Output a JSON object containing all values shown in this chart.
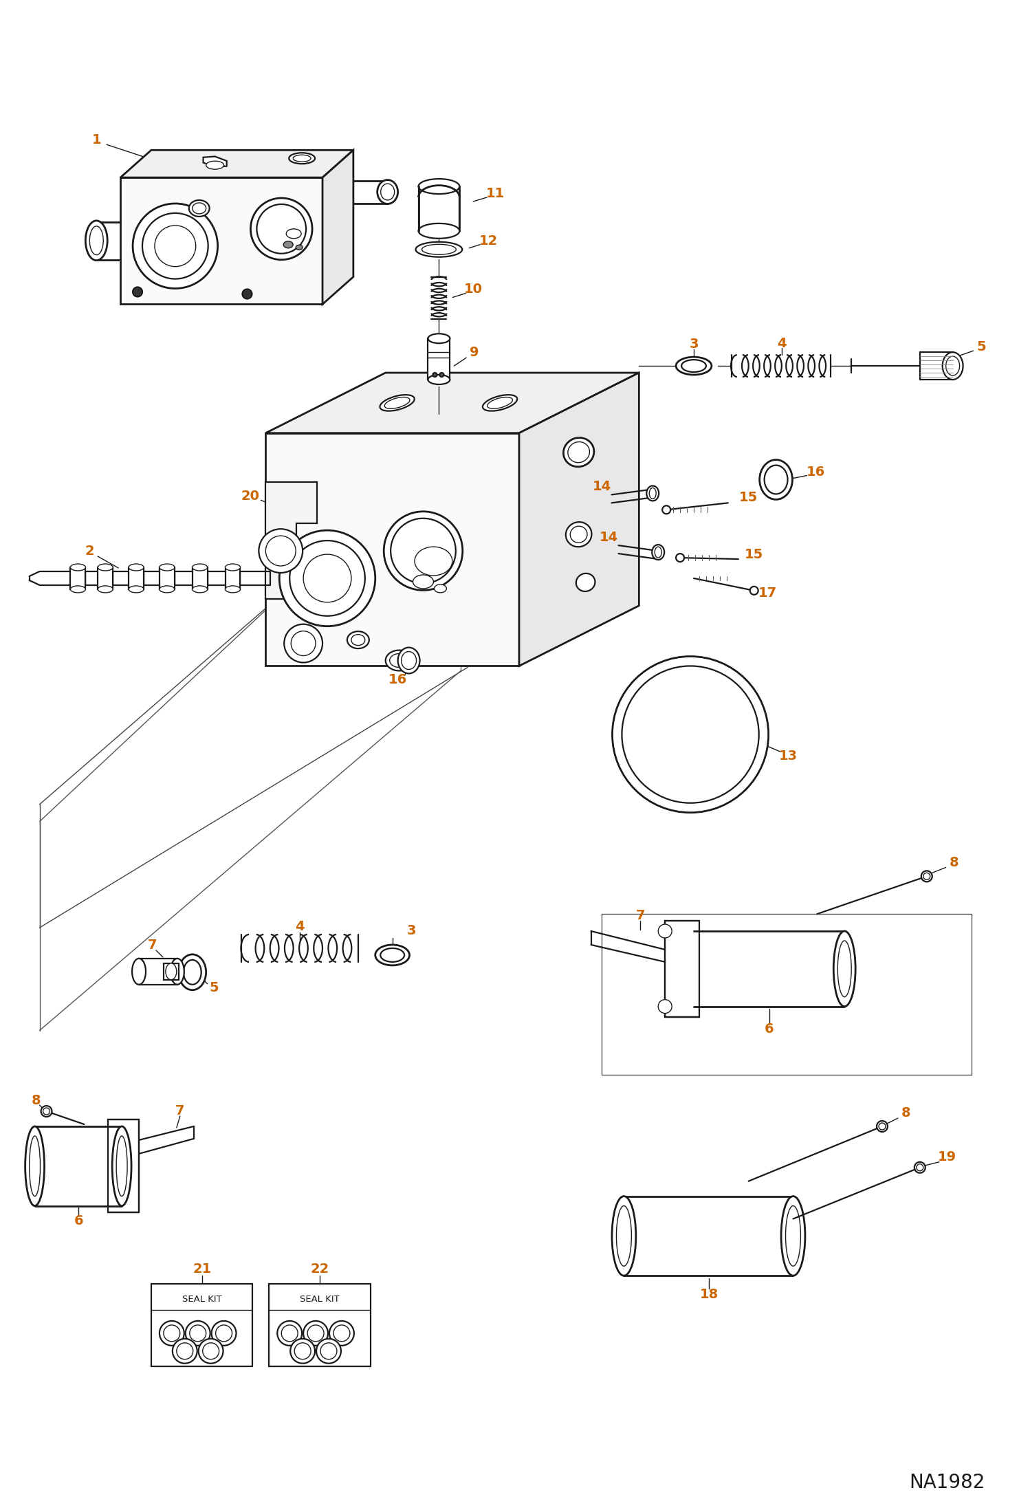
{
  "bg_color": "#ffffff",
  "line_color": "#1a1a1a",
  "part_number_color": "#cc6600",
  "fig_width": 14.98,
  "fig_height": 21.93,
  "watermark": "NA1982"
}
